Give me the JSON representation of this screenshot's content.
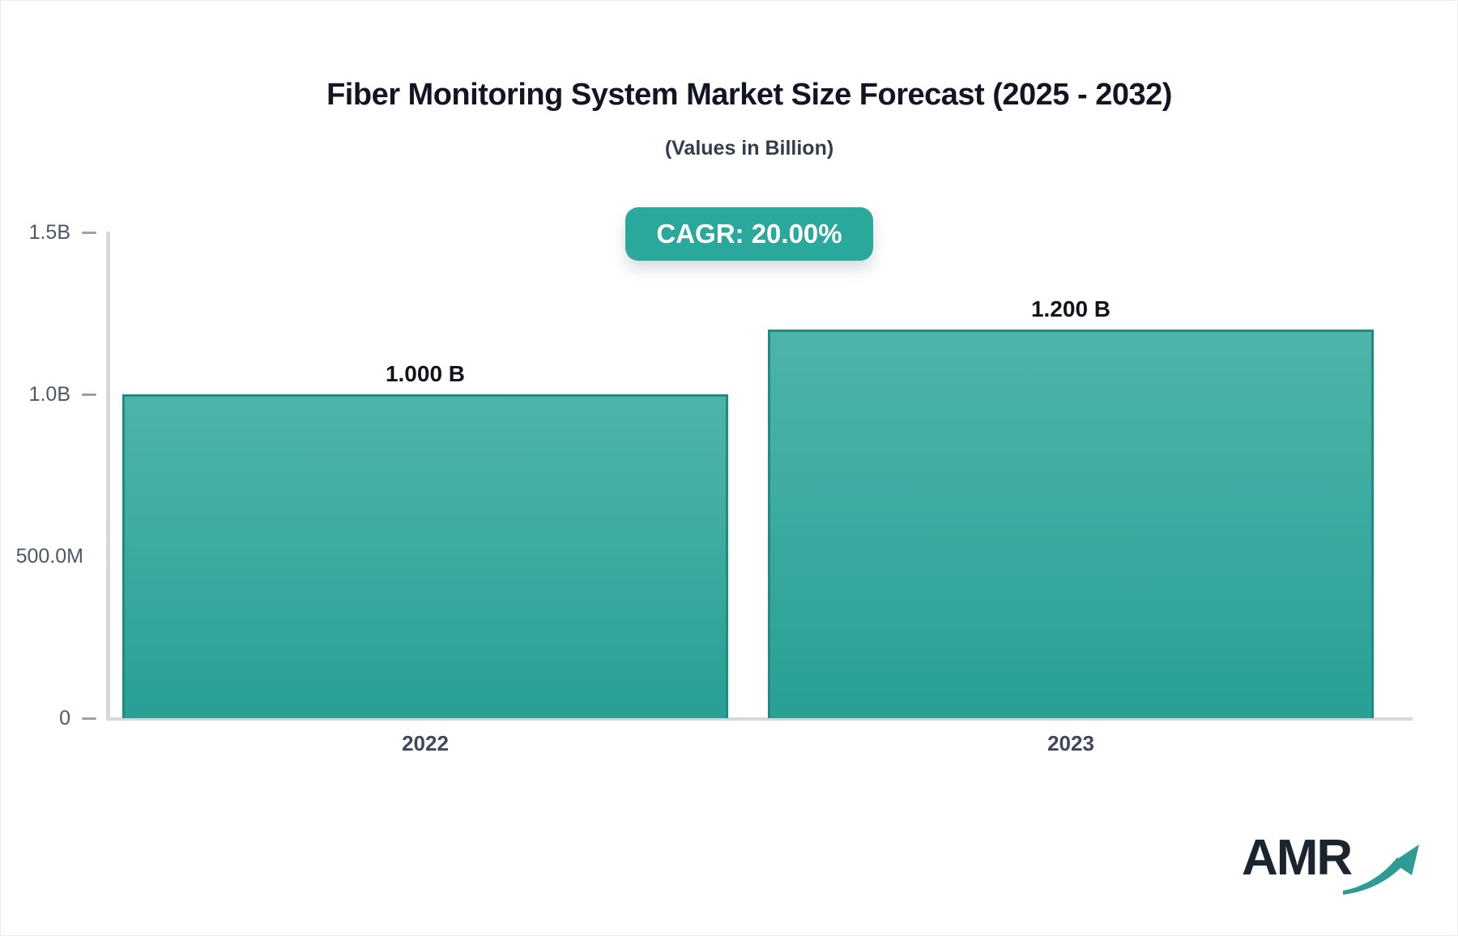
{
  "colors": {
    "accent_teal": "#2aa89b",
    "bar_gradient_top": "#4db4aa",
    "bar_gradient_bottom": "#28a095",
    "bar_border": "#1d8c83",
    "axis_line": "#d6d8dc",
    "tick_dash": "#9aa1ab",
    "title_text": "#111622",
    "subtitle_text": "#333e4d",
    "axis_label": "#4d5866",
    "x_label": "#3e4a5c",
    "value_label": "#10151b",
    "logo_text": "#1a2530",
    "logo_arrow": "#2e9c94"
  },
  "chart_data": {
    "type": "bar",
    "title": "Fiber Monitoring System Market Size Forecast (2025 - 2032)",
    "subtitle": "(Values in Billion)",
    "badge_label": "CAGR: 20.00%",
    "categories": [
      "2022",
      "2023"
    ],
    "values": [
      1.0,
      1.2
    ],
    "value_labels": [
      "1.000 B",
      "1.200 B"
    ],
    "unit": "Billion USD",
    "ylim": [
      0,
      1.5
    ],
    "y_ticks": [
      {
        "label": "1.5B",
        "value": 1.5,
        "dash": true
      },
      {
        "label": "1.0B",
        "value": 1.0,
        "dash": true
      },
      {
        "label": "500.0M",
        "value": 0.5,
        "dash": false
      },
      {
        "label": "0",
        "value": 0,
        "dash": true
      }
    ],
    "legend": "none",
    "grid": "off"
  },
  "logo": {
    "text": "AMR"
  }
}
